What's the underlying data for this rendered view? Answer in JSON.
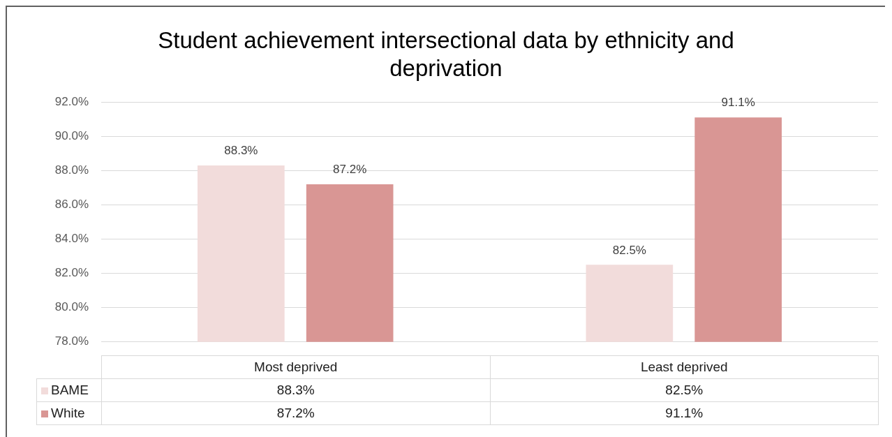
{
  "chart_data": {
    "type": "bar",
    "title": "Student achievement intersectional data by ethnicity and deprivation",
    "categories": [
      "Most deprived",
      "Least deprived"
    ],
    "series": [
      {
        "name": "BAME",
        "color": "#f2dcdb",
        "values": [
          88.3,
          82.5
        ],
        "value_labels": [
          "88.3%",
          "82.5%"
        ]
      },
      {
        "name": "White",
        "color": "#d99694",
        "values": [
          87.2,
          91.1
        ],
        "value_labels": [
          "87.2%",
          "91.1%"
        ]
      }
    ],
    "ylim": [
      78,
      92
    ],
    "yticks": [
      {
        "value": 78,
        "label": "78.0%"
      },
      {
        "value": 80,
        "label": "80.0%"
      },
      {
        "value": 82,
        "label": "82.0%"
      },
      {
        "value": 84,
        "label": "84.0%"
      },
      {
        "value": 86,
        "label": "86.0%"
      },
      {
        "value": 88,
        "label": "88.0%"
      },
      {
        "value": 90,
        "label": "90.0%"
      },
      {
        "value": 92,
        "label": "92.0%"
      }
    ],
    "grid": "y",
    "legend": "bottom"
  }
}
